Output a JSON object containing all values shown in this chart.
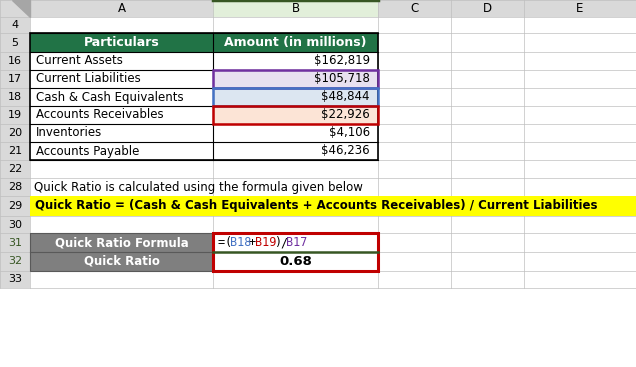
{
  "col_headers_labels": [
    "A",
    "B",
    "C",
    "D",
    "E"
  ],
  "table_rows": [
    {
      "row": 16,
      "particulars": "Current Assets",
      "amount": "$162,819",
      "bg_B": null
    },
    {
      "row": 17,
      "particulars": "Current Liabilities",
      "amount": "$105,718",
      "bg_B": "purple"
    },
    {
      "row": 18,
      "particulars": "Cash & Cash Equivalents",
      "amount": "$48,844",
      "bg_B": "blue"
    },
    {
      "row": 19,
      "particulars": "Accounts Receivables",
      "amount": "$22,926",
      "bg_B": "red"
    },
    {
      "row": 20,
      "particulars": "Inventories",
      "amount": "$4,106",
      "bg_B": null
    },
    {
      "row": 21,
      "particulars": "Accounts Payable",
      "amount": "$46,236",
      "bg_B": null
    }
  ],
  "header_particulars": "Particulars",
  "header_amount": "Amount (in millions)",
  "formula_text": "Quick Ratio = (Cash & Cash Equivalents + Accounts Receivables) / Current Liabilities",
  "note_text": "Quick Ratio is calculated using the formula given below",
  "formula_row_label": "Quick Ratio Formula",
  "result_row_label": "Quick Ratio",
  "result_row_value": "0.68",
  "formula_parts": [
    {
      "text": "=",
      "color": "#000000"
    },
    {
      "text": "(",
      "color": "#000000"
    },
    {
      "text": "B18",
      "color": "#4472c4"
    },
    {
      "text": "+",
      "color": "#000000"
    },
    {
      "text": "B19",
      "color": "#c00000"
    },
    {
      "text": ")",
      "color": "#000000"
    },
    {
      "text": "/",
      "color": "#000000"
    },
    {
      "text": "B17",
      "color": "#7030a0"
    }
  ],
  "header_bg": "#217346",
  "header_fg": "#ffffff",
  "gray_bg": "#7f7f7f",
  "gray_fg": "#ffffff",
  "yellow_bg": "#ffff00",
  "purple_highlight": "#e8e0f0",
  "blue_highlight": "#dce6f1",
  "red_highlight": "#fce4d6",
  "col_header_bg": "#d9d9d9",
  "row_num_bg": "#d9d9d9",
  "grid_color": "#bfbfbf",
  "border_color": "#000000",
  "white": "#ffffff",
  "bg_color": "#ffffff",
  "purple_box": "#7030a0",
  "blue_box": "#4472c4",
  "red_box_outline": "#c00000",
  "green_sep": "#375623",
  "b_col_header_bg": "#e2efda"
}
